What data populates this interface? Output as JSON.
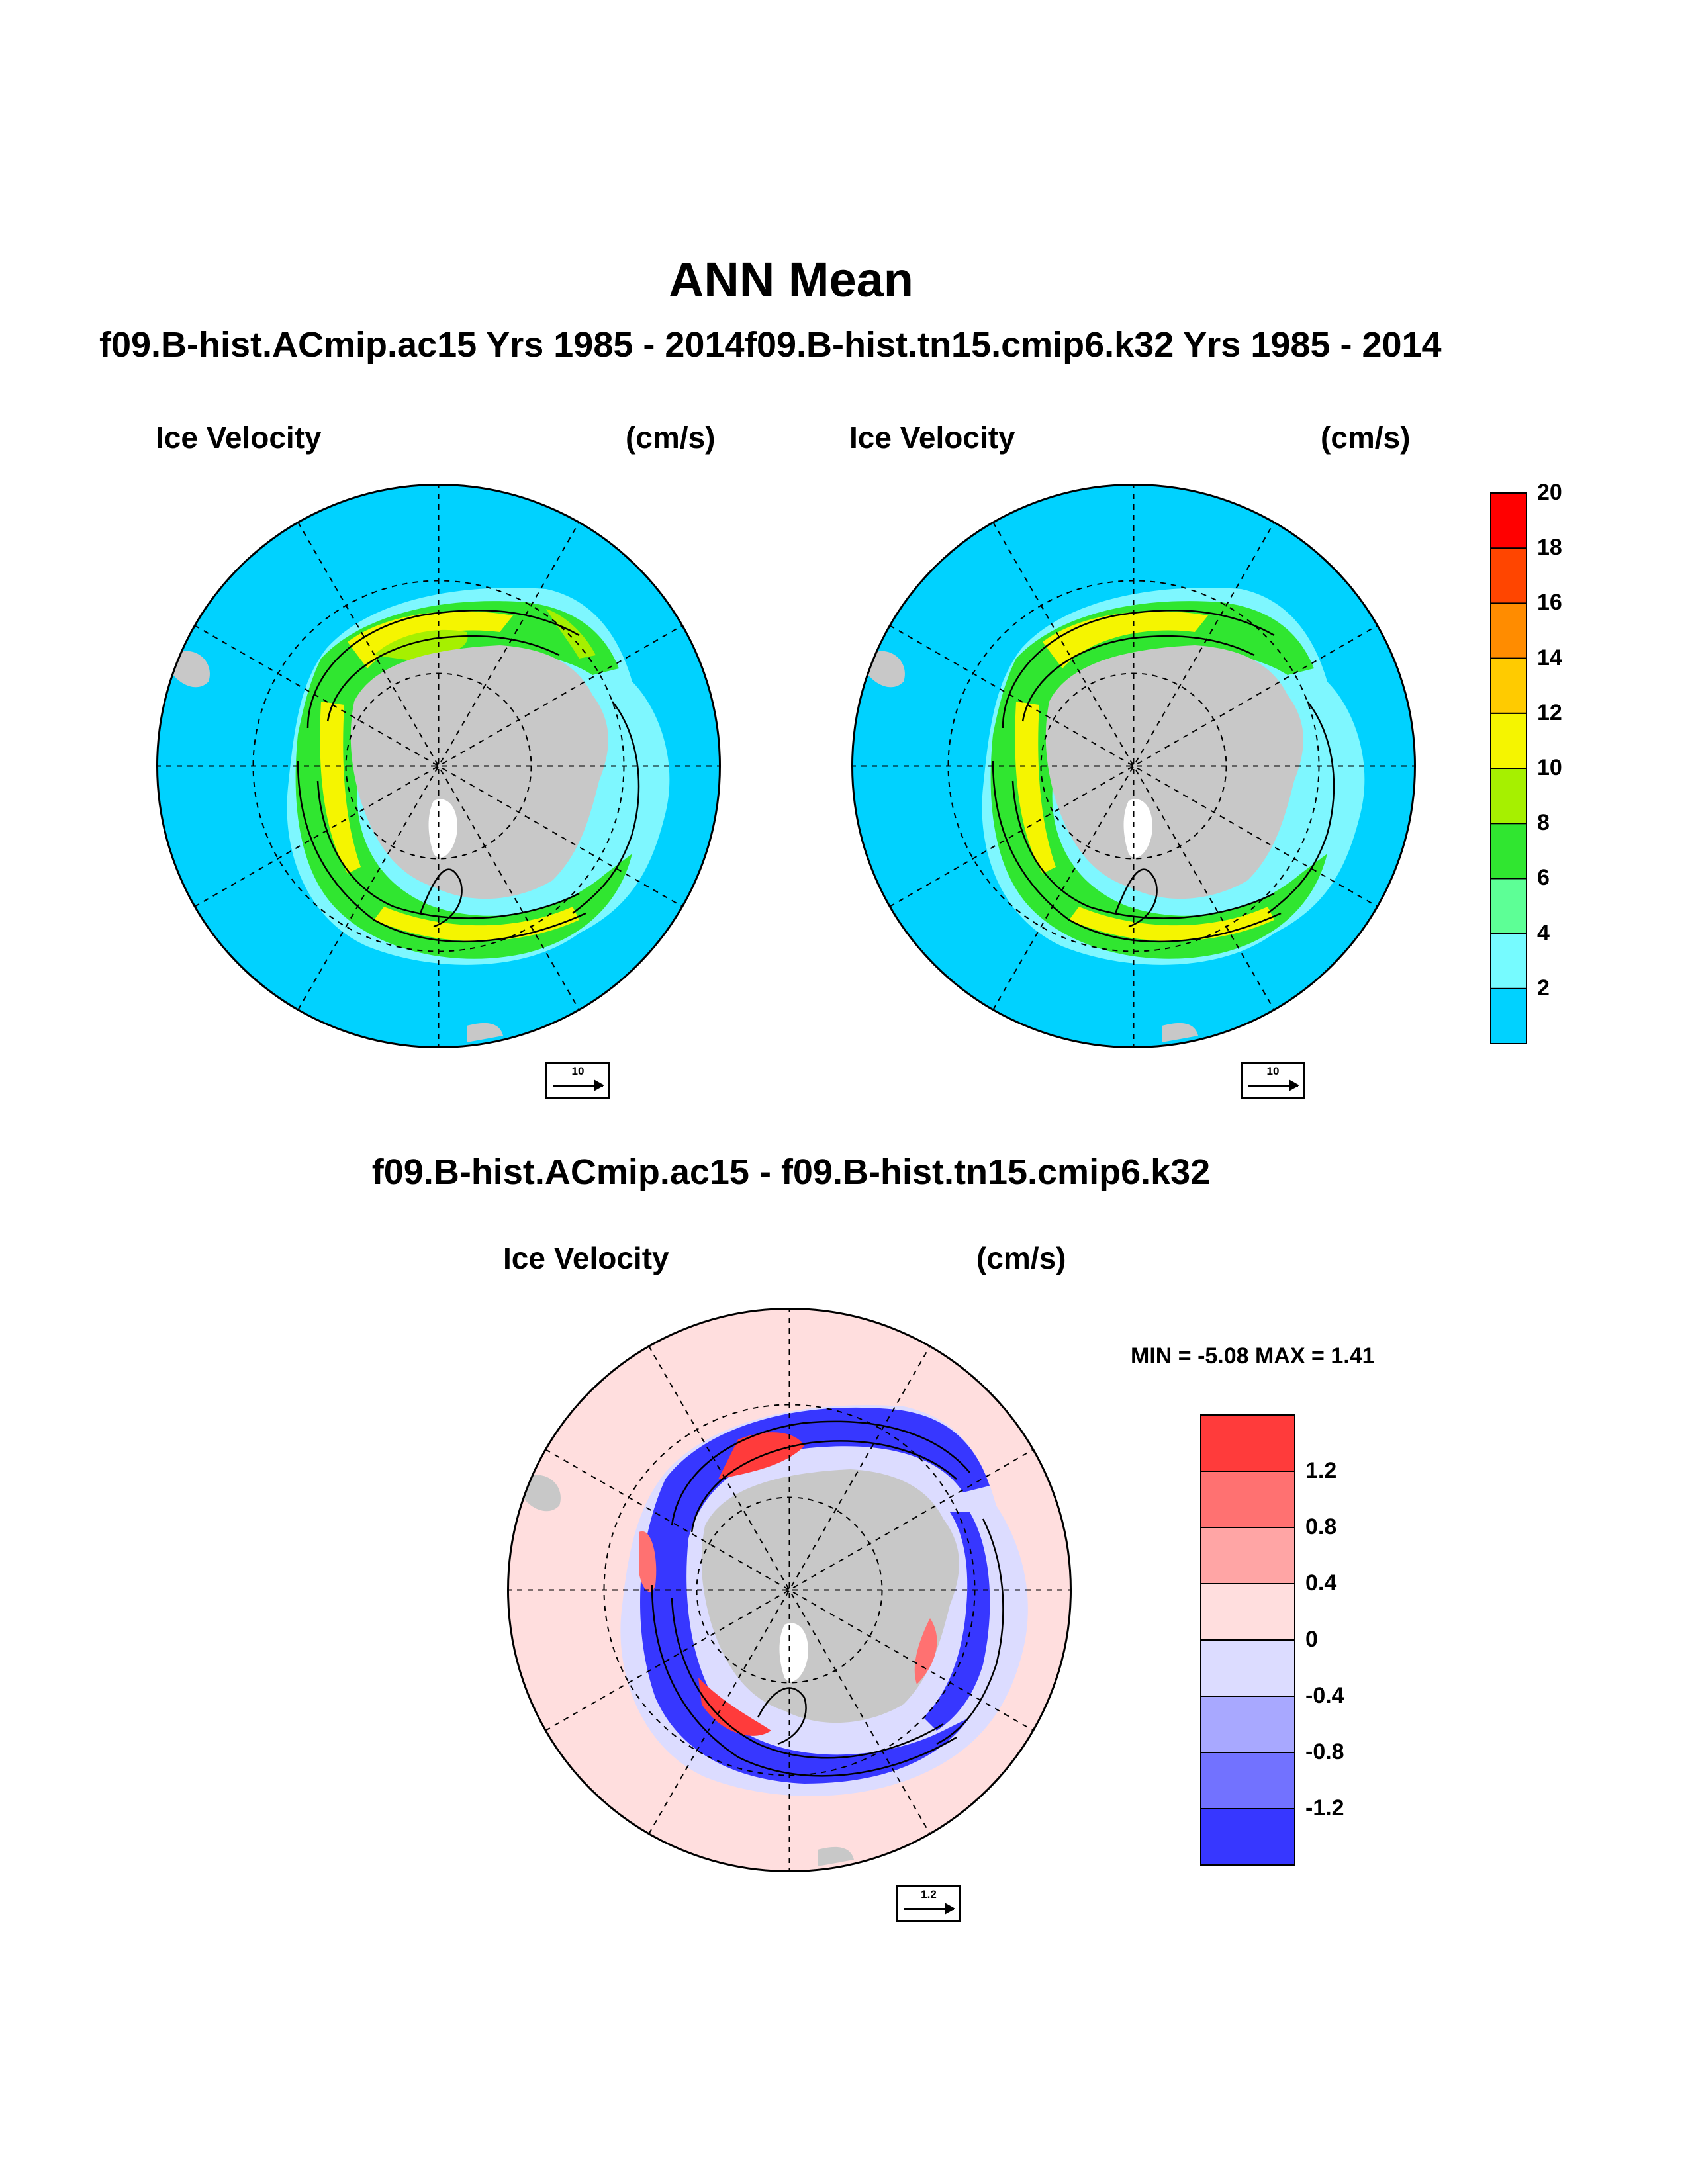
{
  "title": "ANN Mean",
  "case1": {
    "title": "f09.B-hist.ACmip.ac15  Yrs 1985 - 2014",
    "field_label": "Ice Velocity",
    "units": "(cm/s)",
    "ref_vector": "10"
  },
  "case2": {
    "title": "f09.B-hist.tn15.cmip6.k32  Yrs 1985 - 2014",
    "field_label": "Ice Velocity",
    "units": "(cm/s)",
    "ref_vector": "10"
  },
  "difference": {
    "title": "f09.B-hist.ACmip.ac15 - f09.B-hist.tn15.cmip6.k32",
    "field_label": "Ice Velocity",
    "units": "(cm/s)",
    "ref_vector": "1.2",
    "min_label": "MIN =",
    "min_value": "-5.08",
    "max_label": "MAX =",
    "max_value": "1.41"
  },
  "colorbar_main": {
    "ticks": [
      "2",
      "4",
      "6",
      "8",
      "10",
      "12",
      "14",
      "16",
      "18",
      "20"
    ],
    "colors": [
      "#00d2ff",
      "#76fbff",
      "#5dff96",
      "#30e630",
      "#a6f000",
      "#f5f500",
      "#ffcb00",
      "#ff8c00",
      "#ff4500",
      "#ff0000"
    ]
  },
  "colorbar_diff": {
    "ticks": [
      "1.2",
      "0.8",
      "0.4",
      "0",
      "-0.4",
      "-0.8",
      "-1.2"
    ],
    "colors": [
      "#ff3b3b",
      "#ff7171",
      "#ffa5a5",
      "#ffdede",
      "#dcdcff",
      "#a8a8ff",
      "#7272ff",
      "#3737ff"
    ]
  },
  "map_colors": {
    "ocean_main": "#00d2ff",
    "ocean_diff": "#ffdede",
    "land": "#c8c8c8"
  }
}
